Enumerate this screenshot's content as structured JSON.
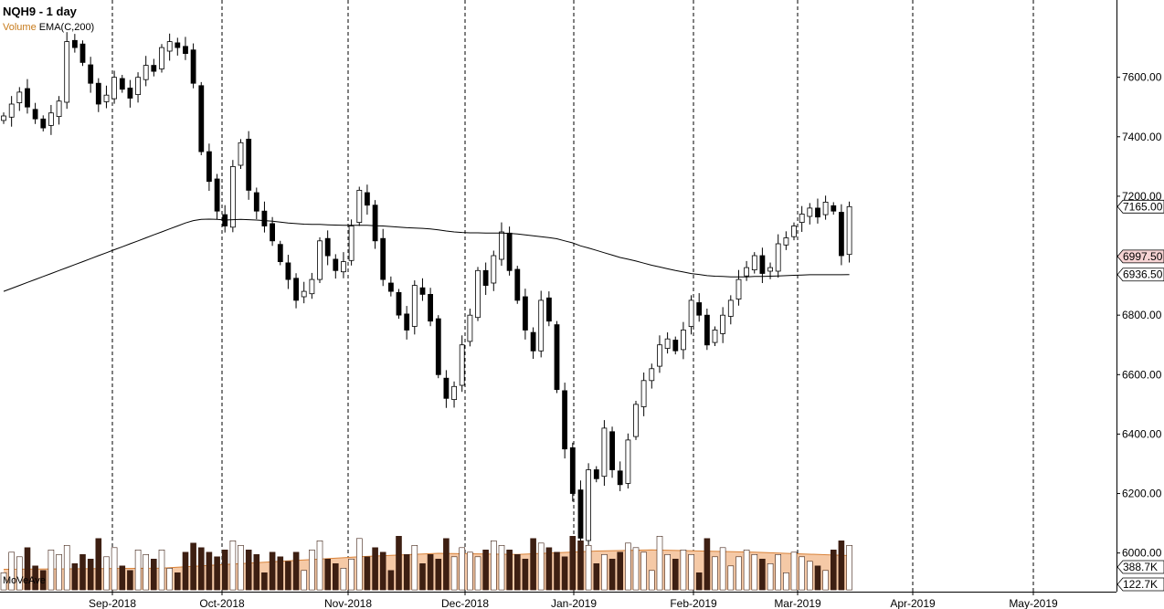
{
  "header": {
    "title": "NQH9 - 1 day",
    "legend_volume": "Volume",
    "legend_ema": "EMA(C,200)",
    "volume_indicator": "MoVeAve"
  },
  "colors": {
    "up_candle": "#ffffff",
    "down_candle": "#000000",
    "ema_line": "#000000",
    "volume_bar": "#3d1f12",
    "volume_ma_fill": "#f5c9a6",
    "volume_ma_line": "#d9833a",
    "last_price_tag": "#f6d3d3",
    "legend_volume_text": "#c77a1a"
  },
  "chart_data": {
    "type": "candlestick",
    "symbol": "NQH9",
    "interval": "1 day",
    "x_labels": [
      "Sep-2018",
      "Oct-2018",
      "Nov-2018",
      "Dec-2018",
      "Jan-2019",
      "Feb-2019",
      "Mar-2019",
      "Apr-2019",
      "May-2019"
    ],
    "price_ticks": [
      "7600.00",
      "7400.00",
      "7200.00",
      "7000.00",
      "6800.00",
      "6600.00",
      "6400.00",
      "6200.00",
      "6000.00"
    ],
    "ylim": [
      5870,
      7860
    ],
    "price_labels": {
      "last": "7165.00",
      "previous_close": "6997.50",
      "ema": "6936.50"
    },
    "volume_labels": [
      "388.7K",
      "122.7K"
    ],
    "volume_ylim": [
      0,
      800
    ],
    "grid": "vertical dashed at month starts",
    "close": [
      7470,
      7510,
      7550,
      7500,
      7460,
      7430,
      7480,
      7520,
      7720,
      7700,
      7650,
      7580,
      7510,
      7540,
      7600,
      7560,
      7530,
      7600,
      7640,
      7620,
      7700,
      7720,
      7700,
      7680,
      7580,
      7350,
      7250,
      7150,
      7100,
      7300,
      7380,
      7220,
      7150,
      7100,
      7050,
      6980,
      6920,
      6850,
      6880,
      6920,
      7050,
      7000,
      6950,
      6980,
      7100,
      7220,
      7170,
      7050,
      6920,
      6880,
      6800,
      6750,
      6900,
      6870,
      6780,
      6600,
      6520,
      6560,
      6700,
      6800,
      6950,
      6900,
      7000,
      7080,
      6950,
      6850,
      6750,
      6680,
      6850,
      6780,
      6550,
      6350,
      6200,
      6050,
      6280,
      6250,
      6420,
      6280,
      6230,
      6380,
      6500,
      6580,
      6620,
      6700,
      6720,
      6680,
      6750,
      6850,
      6800,
      6700,
      6750,
      6800,
      6850,
      6920,
      6960,
      7000,
      6940,
      6960,
      7040,
      7060,
      7100,
      7140,
      7160,
      7130,
      7180,
      7150,
      7000,
      7165
    ],
    "ema_200": [
      6880,
      6890,
      6900,
      6910,
      6920,
      6930,
      6940,
      6950,
      6960,
      6970,
      6980,
      6990,
      7000,
      7010,
      7020,
      7030,
      7040,
      7050,
      7060,
      7070,
      7080,
      7090,
      7100,
      7110,
      7118,
      7122,
      7123,
      7122,
      7120,
      7121,
      7122,
      7121,
      7120,
      7118,
      7116,
      7113,
      7110,
      7108,
      7106,
      7105,
      7105,
      7104,
      7103,
      7102,
      7102,
      7102,
      7102,
      7101,
      7100,
      7098,
      7096,
      7094,
      7093,
      7092,
      7090,
      7087,
      7083,
      7080,
      7078,
      7077,
      7077,
      7076,
      7076,
      7076,
      7075,
      7073,
      7070,
      7067,
      7064,
      7061,
      7057,
      7050,
      7043,
      7033,
      7026,
      7018,
      7010,
      7002,
      6994,
      6988,
      6982,
      6975,
      6968,
      6962,
      6956,
      6950,
      6945,
      6940,
      6937,
      6933,
      6931,
      6930,
      6929,
      6929,
      6929,
      6930,
      6930,
      6931,
      6932,
      6933,
      6934,
      6935,
      6936,
      6936,
      6936,
      6936,
      6936,
      6936.5
    ],
    "volume_ma": [
      {
        "x": 0,
        "v": 180
      },
      {
        "x": 20,
        "v": 190
      },
      {
        "x": 35,
        "v": 250
      },
      {
        "x": 45,
        "v": 290
      },
      {
        "x": 55,
        "v": 320
      },
      {
        "x": 65,
        "v": 310
      },
      {
        "x": 75,
        "v": 340
      },
      {
        "x": 82,
        "v": 350
      },
      {
        "x": 95,
        "v": 330
      },
      {
        "x": 107,
        "v": 300
      }
    ]
  }
}
